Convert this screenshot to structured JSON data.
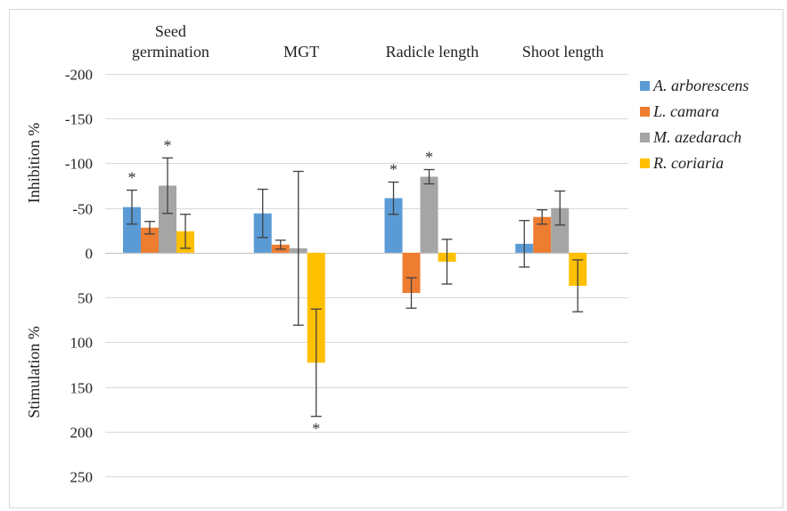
{
  "chart_data": {
    "type": "bar",
    "orientation": "vertical",
    "y_axis_inverted": true,
    "ylim": [
      -200,
      250
    ],
    "y_ticks": [
      "-200",
      "-150",
      "-100",
      "-50",
      "0",
      "50",
      "100",
      "150",
      "200",
      "250"
    ],
    "y_tick_values": [
      -200,
      -150,
      -100,
      -50,
      0,
      50,
      100,
      150,
      200,
      250
    ],
    "ylabel_top": "Inhibition %",
    "ylabel_bottom": "Stimulation %",
    "categories": [
      "Seed germination",
      "MGT",
      "Radicle length",
      "Shoot length"
    ],
    "category_lines": [
      [
        "Seed",
        "germination"
      ],
      [
        "MGT"
      ],
      [
        "Radicle length"
      ],
      [
        "Shoot length"
      ]
    ],
    "grid": true,
    "legend_position": "right",
    "series": [
      {
        "name": "A. arborescens",
        "color": "#5B9BD5",
        "values": [
          -51,
          -44,
          -61,
          -10
        ],
        "errors": [
          19,
          27,
          18,
          26
        ],
        "significant": [
          true,
          false,
          true,
          false
        ]
      },
      {
        "name": "L. camara",
        "color": "#ED7D31",
        "values": [
          -28,
          -9,
          45,
          -40
        ],
        "errors": [
          7,
          5,
          17,
          8
        ],
        "significant": [
          false,
          false,
          false,
          false
        ]
      },
      {
        "name": "M. azedarach",
        "color": "#A5A5A5",
        "values": [
          -75,
          -5,
          -85,
          -50
        ],
        "errors": [
          31,
          86,
          8,
          19
        ],
        "significant": [
          true,
          false,
          true,
          false
        ]
      },
      {
        "name": "R. coriaria",
        "color": "#FFC000",
        "values": [
          -24,
          123,
          10,
          37
        ],
        "errors": [
          19,
          60,
          25,
          29
        ],
        "significant": [
          false,
          true,
          false,
          false
        ]
      }
    ],
    "significance_marker": "*"
  }
}
